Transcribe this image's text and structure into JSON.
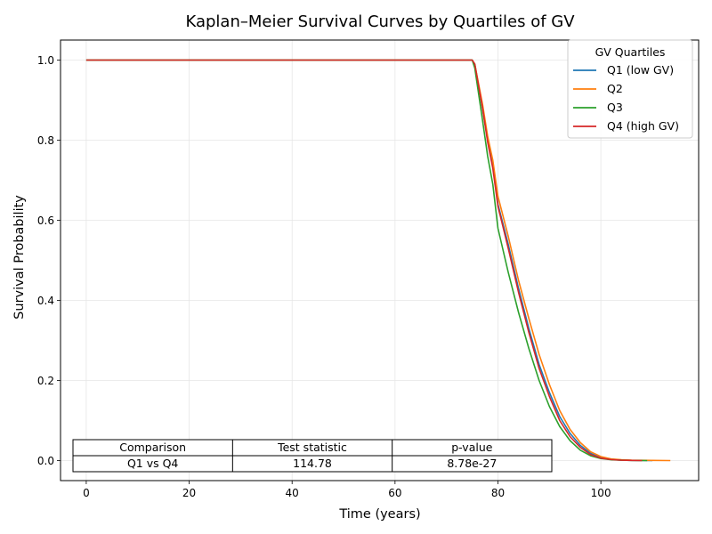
{
  "chart_data": {
    "type": "line",
    "title": "Kaplan–Meier Survival Curves by Quartiles of GV",
    "xlabel": "Time (years)",
    "ylabel": "Survival Probability",
    "xlim": [
      -5,
      119
    ],
    "ylim": [
      -0.05,
      1.05
    ],
    "xticks": [
      0,
      20,
      40,
      60,
      80,
      100
    ],
    "yticks": [
      0.0,
      0.2,
      0.4,
      0.6,
      0.8,
      1.0
    ],
    "xtick_labels": [
      "0",
      "20",
      "40",
      "60",
      "80",
      "100"
    ],
    "ytick_labels": [
      "0.0",
      "0.2",
      "0.4",
      "0.6",
      "0.8",
      "1.0"
    ],
    "grid": true,
    "legend": {
      "title": "GV Quartiles",
      "placement": "top-right"
    },
    "series": [
      {
        "name": "Q1 (low GV)",
        "color": "#1f77b4",
        "x": [
          0,
          75,
          75.5,
          77,
          78,
          79,
          80,
          82,
          84,
          86,
          88,
          90,
          92,
          94,
          96,
          98,
          100,
          102,
          104,
          106,
          110
        ],
        "y": [
          1.0,
          1.0,
          0.99,
          0.88,
          0.8,
          0.74,
          0.64,
          0.54,
          0.43,
          0.33,
          0.24,
          0.17,
          0.11,
          0.068,
          0.038,
          0.018,
          0.007,
          0.003,
          0.001,
          0.0005,
          0.0
        ]
      },
      {
        "name": "Q2",
        "color": "#ff7f0e",
        "x": [
          0,
          75,
          75.5,
          77,
          78,
          79,
          80,
          82,
          84,
          86,
          88,
          90,
          92,
          94,
          96,
          98,
          100,
          102,
          104,
          106,
          110,
          113.5
        ],
        "y": [
          1.0,
          1.0,
          0.99,
          0.89,
          0.81,
          0.75,
          0.66,
          0.56,
          0.45,
          0.355,
          0.265,
          0.19,
          0.125,
          0.078,
          0.045,
          0.022,
          0.01,
          0.004,
          0.002,
          0.001,
          0.0005,
          0.0
        ]
      },
      {
        "name": "Q3",
        "color": "#2ca02c",
        "x": [
          0,
          75,
          75.5,
          77,
          78,
          79,
          80,
          82,
          84,
          86,
          88,
          90,
          92,
          94,
          96,
          98,
          100,
          102,
          104,
          106,
          109
        ],
        "y": [
          1.0,
          1.0,
          0.98,
          0.85,
          0.76,
          0.69,
          0.58,
          0.47,
          0.37,
          0.28,
          0.2,
          0.135,
          0.085,
          0.05,
          0.026,
          0.012,
          0.005,
          0.002,
          0.001,
          0.0005,
          0.0
        ]
      },
      {
        "name": "Q4 (high GV)",
        "color": "#d62728",
        "x": [
          0,
          75,
          75.5,
          77,
          78,
          79,
          80,
          82,
          84,
          86,
          88,
          90,
          92,
          94,
          96,
          98,
          100,
          102,
          104,
          106,
          108
        ],
        "y": [
          1.0,
          1.0,
          0.99,
          0.88,
          0.795,
          0.73,
          0.635,
          0.53,
          0.42,
          0.32,
          0.23,
          0.16,
          0.1,
          0.06,
          0.033,
          0.015,
          0.006,
          0.0025,
          0.001,
          0.0005,
          0.0
        ]
      }
    ],
    "table": {
      "headers": [
        "Comparison",
        "Test statistic",
        "p-value"
      ],
      "rows": [
        [
          "Q1 vs Q4",
          "114.78",
          "8.78e-27"
        ]
      ]
    }
  }
}
